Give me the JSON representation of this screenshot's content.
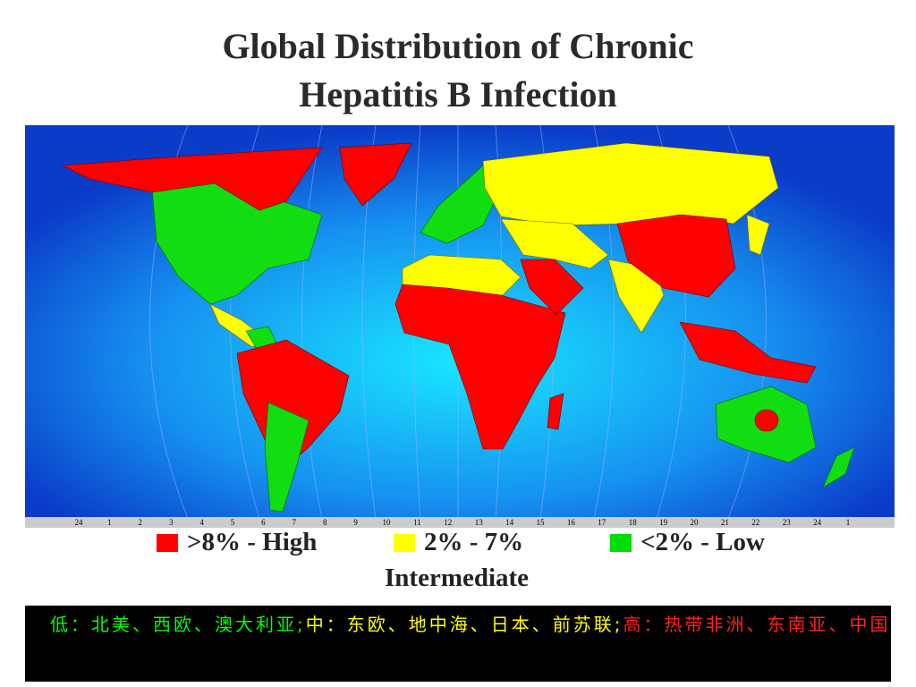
{
  "header": {
    "title_lines": [
      "Global Distribution of Chronic",
      "Hepatitis B Infection"
    ]
  },
  "scale_bar": [
    24,
    1,
    2,
    3,
    4,
    5,
    6,
    7,
    8,
    9,
    10,
    11,
    12,
    13,
    14,
    15,
    16,
    17,
    18,
    19,
    20,
    21,
    22,
    23,
    24,
    1
  ],
  "legend": [
    {
      "label": ">8% - High",
      "color": "#ff0000"
    },
    {
      "label": "2% - 7%",
      "sublabel": "Intermediate",
      "color": "#ffff00"
    },
    {
      "label": "<2% - Low",
      "color": "#00dd00"
    }
  ],
  "caption": [
    {
      "text": "低：北美、西欧、澳大利亚;",
      "color": "#00ff00"
    },
    {
      "text": "中：东欧、地中海、日本、前苏联;",
      "color": "#ffff00"
    },
    {
      "text": "高：热带非洲、东南亚、中国",
      "color": "#ff2020"
    }
  ]
}
